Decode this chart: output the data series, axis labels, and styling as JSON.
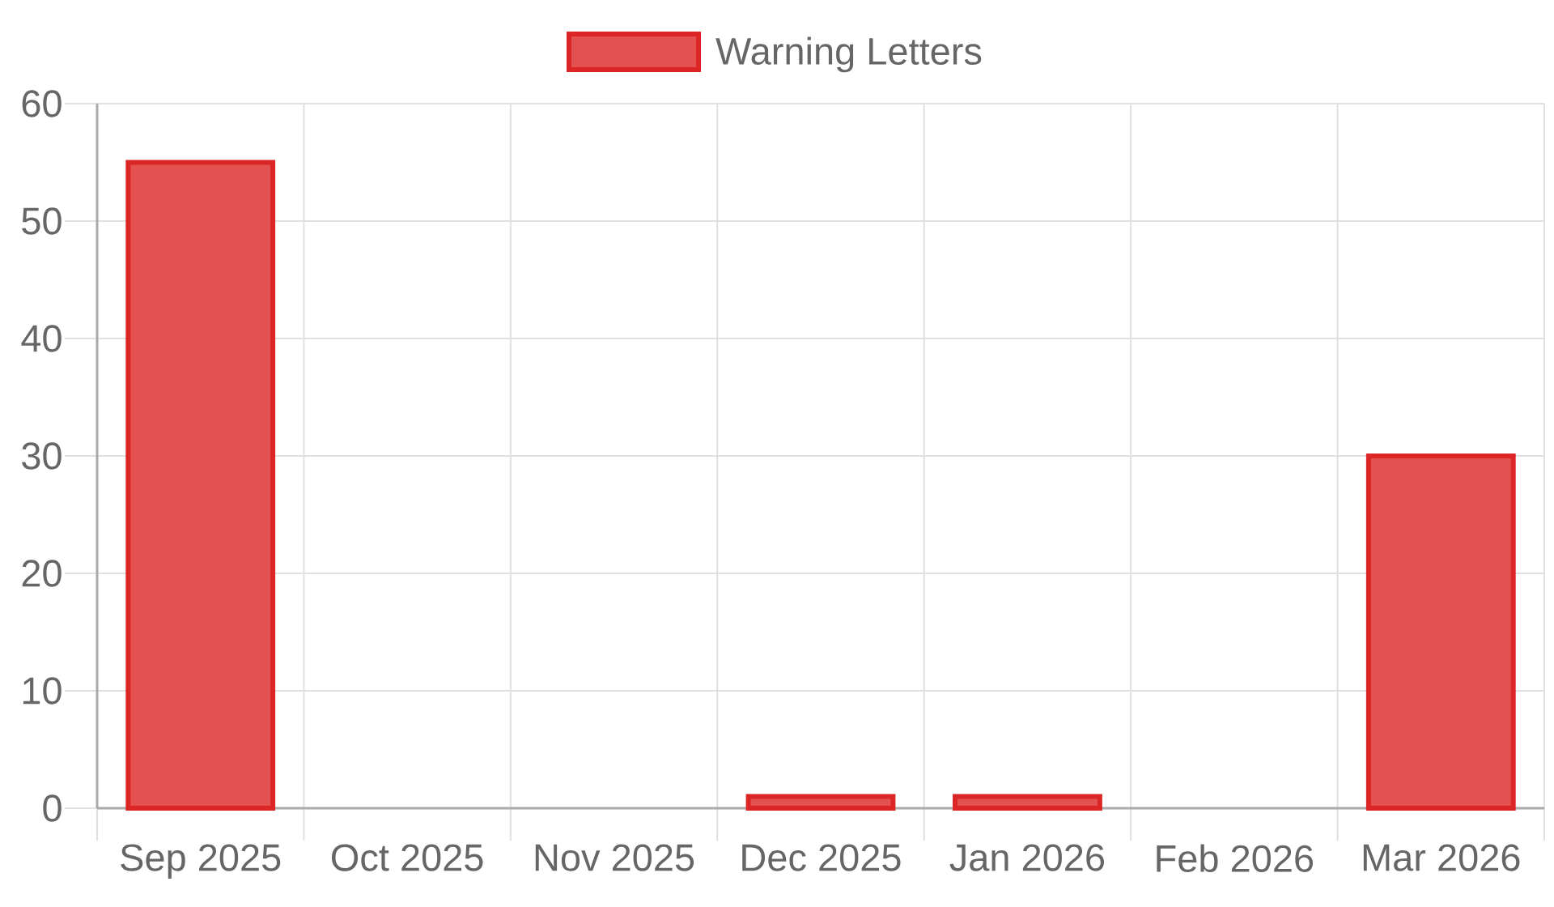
{
  "chart_data": {
    "type": "bar",
    "categories": [
      "Sep 2025",
      "Oct 2025",
      "Nov 2025",
      "Dec 2025",
      "Jan 2026",
      "Feb 2026",
      "Mar 2026"
    ],
    "series": [
      {
        "name": "Warning Letters",
        "color": "#dc2626",
        "values": [
          55,
          0,
          0,
          1,
          1,
          0,
          30
        ]
      }
    ],
    "ylim": [
      0,
      60
    ],
    "yticks": [
      0,
      10,
      20,
      30,
      40,
      50,
      60
    ],
    "grid": true,
    "legend": "top"
  }
}
